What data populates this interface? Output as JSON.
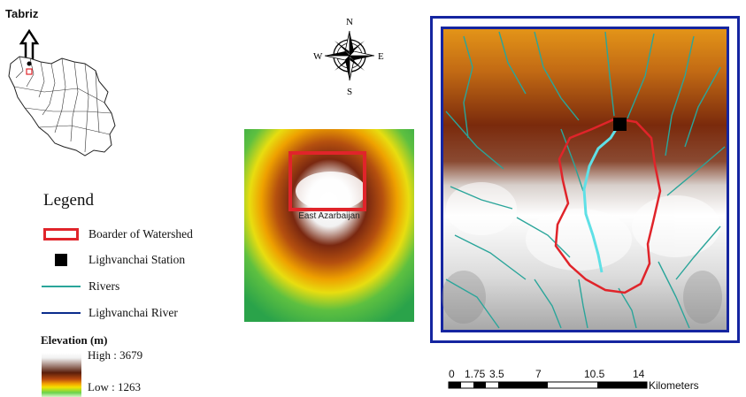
{
  "inset": {
    "city_label": "Tabriz"
  },
  "north_arrow": {
    "n": "N",
    "s": "S",
    "e": "E",
    "w": "W"
  },
  "province_map": {
    "label": "East Azarbaijan"
  },
  "legend": {
    "title": "Legend",
    "items": [
      {
        "label": "Boarder of Watershed",
        "color": "#e0242a"
      },
      {
        "label": "Lighvanchai Station",
        "color": "#000000"
      },
      {
        "label": "Rivers",
        "color": "#2aa59a"
      },
      {
        "label": "Lighvanchai River",
        "color": "#0a2c8c"
      }
    ]
  },
  "elevation": {
    "title": "Elevation (m)",
    "high": "High : 3679",
    "low": "Low : 1263"
  },
  "scale_bar": {
    "ticks": [
      "0",
      "1.75",
      "3.5",
      "7",
      "10.5",
      "14"
    ],
    "unit": "Kilometers"
  },
  "colors": {
    "frame_blue": "#1525a0",
    "watershed_red": "#e0242a",
    "main_river": "#5fe0e6",
    "rivers": "#2aa59a"
  }
}
